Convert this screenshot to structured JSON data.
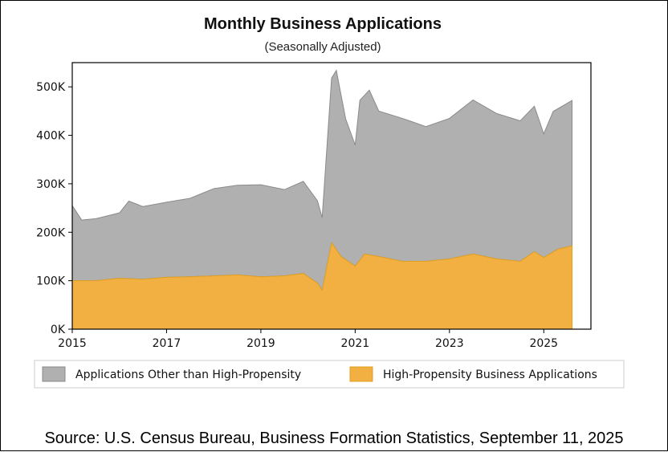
{
  "title": "Monthly Business Applications",
  "subtitle": "(Seasonally Adjusted)",
  "source": "Source: U.S. Census Bureau, Business Formation Statistics, September 11, 2025",
  "colors": {
    "other": "#b0b0b0",
    "other_line": "#8a8a8a",
    "high": "#f2b042",
    "high_line": "#e1a020"
  },
  "chart_data": {
    "type": "area",
    "stacked": true,
    "title": "Monthly Business Applications",
    "subtitle": "(Seasonally Adjusted)",
    "xlabel": "",
    "ylabel": "",
    "xlim": [
      2015,
      2026
    ],
    "ylim": [
      0,
      550000
    ],
    "x_ticks": [
      2015,
      2017,
      2019,
      2021,
      2023,
      2025
    ],
    "x_tick_labels": [
      "2015",
      "2017",
      "2019",
      "2021",
      "2023",
      "2025"
    ],
    "y_ticks": [
      0,
      100000,
      200000,
      300000,
      400000,
      500000
    ],
    "y_tick_labels": [
      "0K",
      "100K",
      "200K",
      "300K",
      "400K",
      "500K"
    ],
    "grid": false,
    "legend_position": "bottom",
    "series": [
      {
        "name": "Applications Other than High-Propensity",
        "color": "#b0b0b0",
        "points": [
          [
            2015.0,
            155000
          ],
          [
            2015.2,
            125000
          ],
          [
            2015.5,
            128000
          ],
          [
            2016.0,
            135000
          ],
          [
            2016.2,
            160000
          ],
          [
            2016.5,
            150000
          ],
          [
            2017.0,
            155000
          ],
          [
            2017.5,
            162000
          ],
          [
            2018.0,
            180000
          ],
          [
            2018.5,
            185000
          ],
          [
            2019.0,
            190000
          ],
          [
            2019.5,
            178000
          ],
          [
            2019.9,
            190000
          ],
          [
            2020.2,
            170000
          ],
          [
            2020.3,
            150000
          ],
          [
            2020.5,
            340000
          ],
          [
            2020.6,
            370000
          ],
          [
            2020.8,
            290000
          ],
          [
            2021.0,
            250000
          ],
          [
            2021.1,
            330000
          ],
          [
            2021.3,
            340000
          ],
          [
            2021.5,
            300000
          ],
          [
            2022.0,
            295000
          ],
          [
            2022.5,
            278000
          ],
          [
            2023.0,
            290000
          ],
          [
            2023.5,
            318000
          ],
          [
            2024.0,
            300000
          ],
          [
            2024.5,
            290000
          ],
          [
            2024.8,
            300000
          ],
          [
            2025.0,
            255000
          ],
          [
            2025.2,
            290000
          ],
          [
            2025.6,
            300000
          ]
        ]
      },
      {
        "name": "High-Propensity Business Applications",
        "color": "#f2b042",
        "points": [
          [
            2015.0,
            100000
          ],
          [
            2015.5,
            100000
          ],
          [
            2016.0,
            105000
          ],
          [
            2016.5,
            103000
          ],
          [
            2017.0,
            107000
          ],
          [
            2017.5,
            108000
          ],
          [
            2018.0,
            110000
          ],
          [
            2018.5,
            112000
          ],
          [
            2019.0,
            108000
          ],
          [
            2019.5,
            110000
          ],
          [
            2019.9,
            115000
          ],
          [
            2020.2,
            95000
          ],
          [
            2020.3,
            80000
          ],
          [
            2020.5,
            178000
          ],
          [
            2020.7,
            150000
          ],
          [
            2021.0,
            130000
          ],
          [
            2021.2,
            155000
          ],
          [
            2021.5,
            150000
          ],
          [
            2022.0,
            140000
          ],
          [
            2022.5,
            140000
          ],
          [
            2023.0,
            145000
          ],
          [
            2023.5,
            155000
          ],
          [
            2024.0,
            145000
          ],
          [
            2024.5,
            140000
          ],
          [
            2024.8,
            160000
          ],
          [
            2025.0,
            148000
          ],
          [
            2025.3,
            165000
          ],
          [
            2025.6,
            172000
          ]
        ]
      }
    ]
  }
}
